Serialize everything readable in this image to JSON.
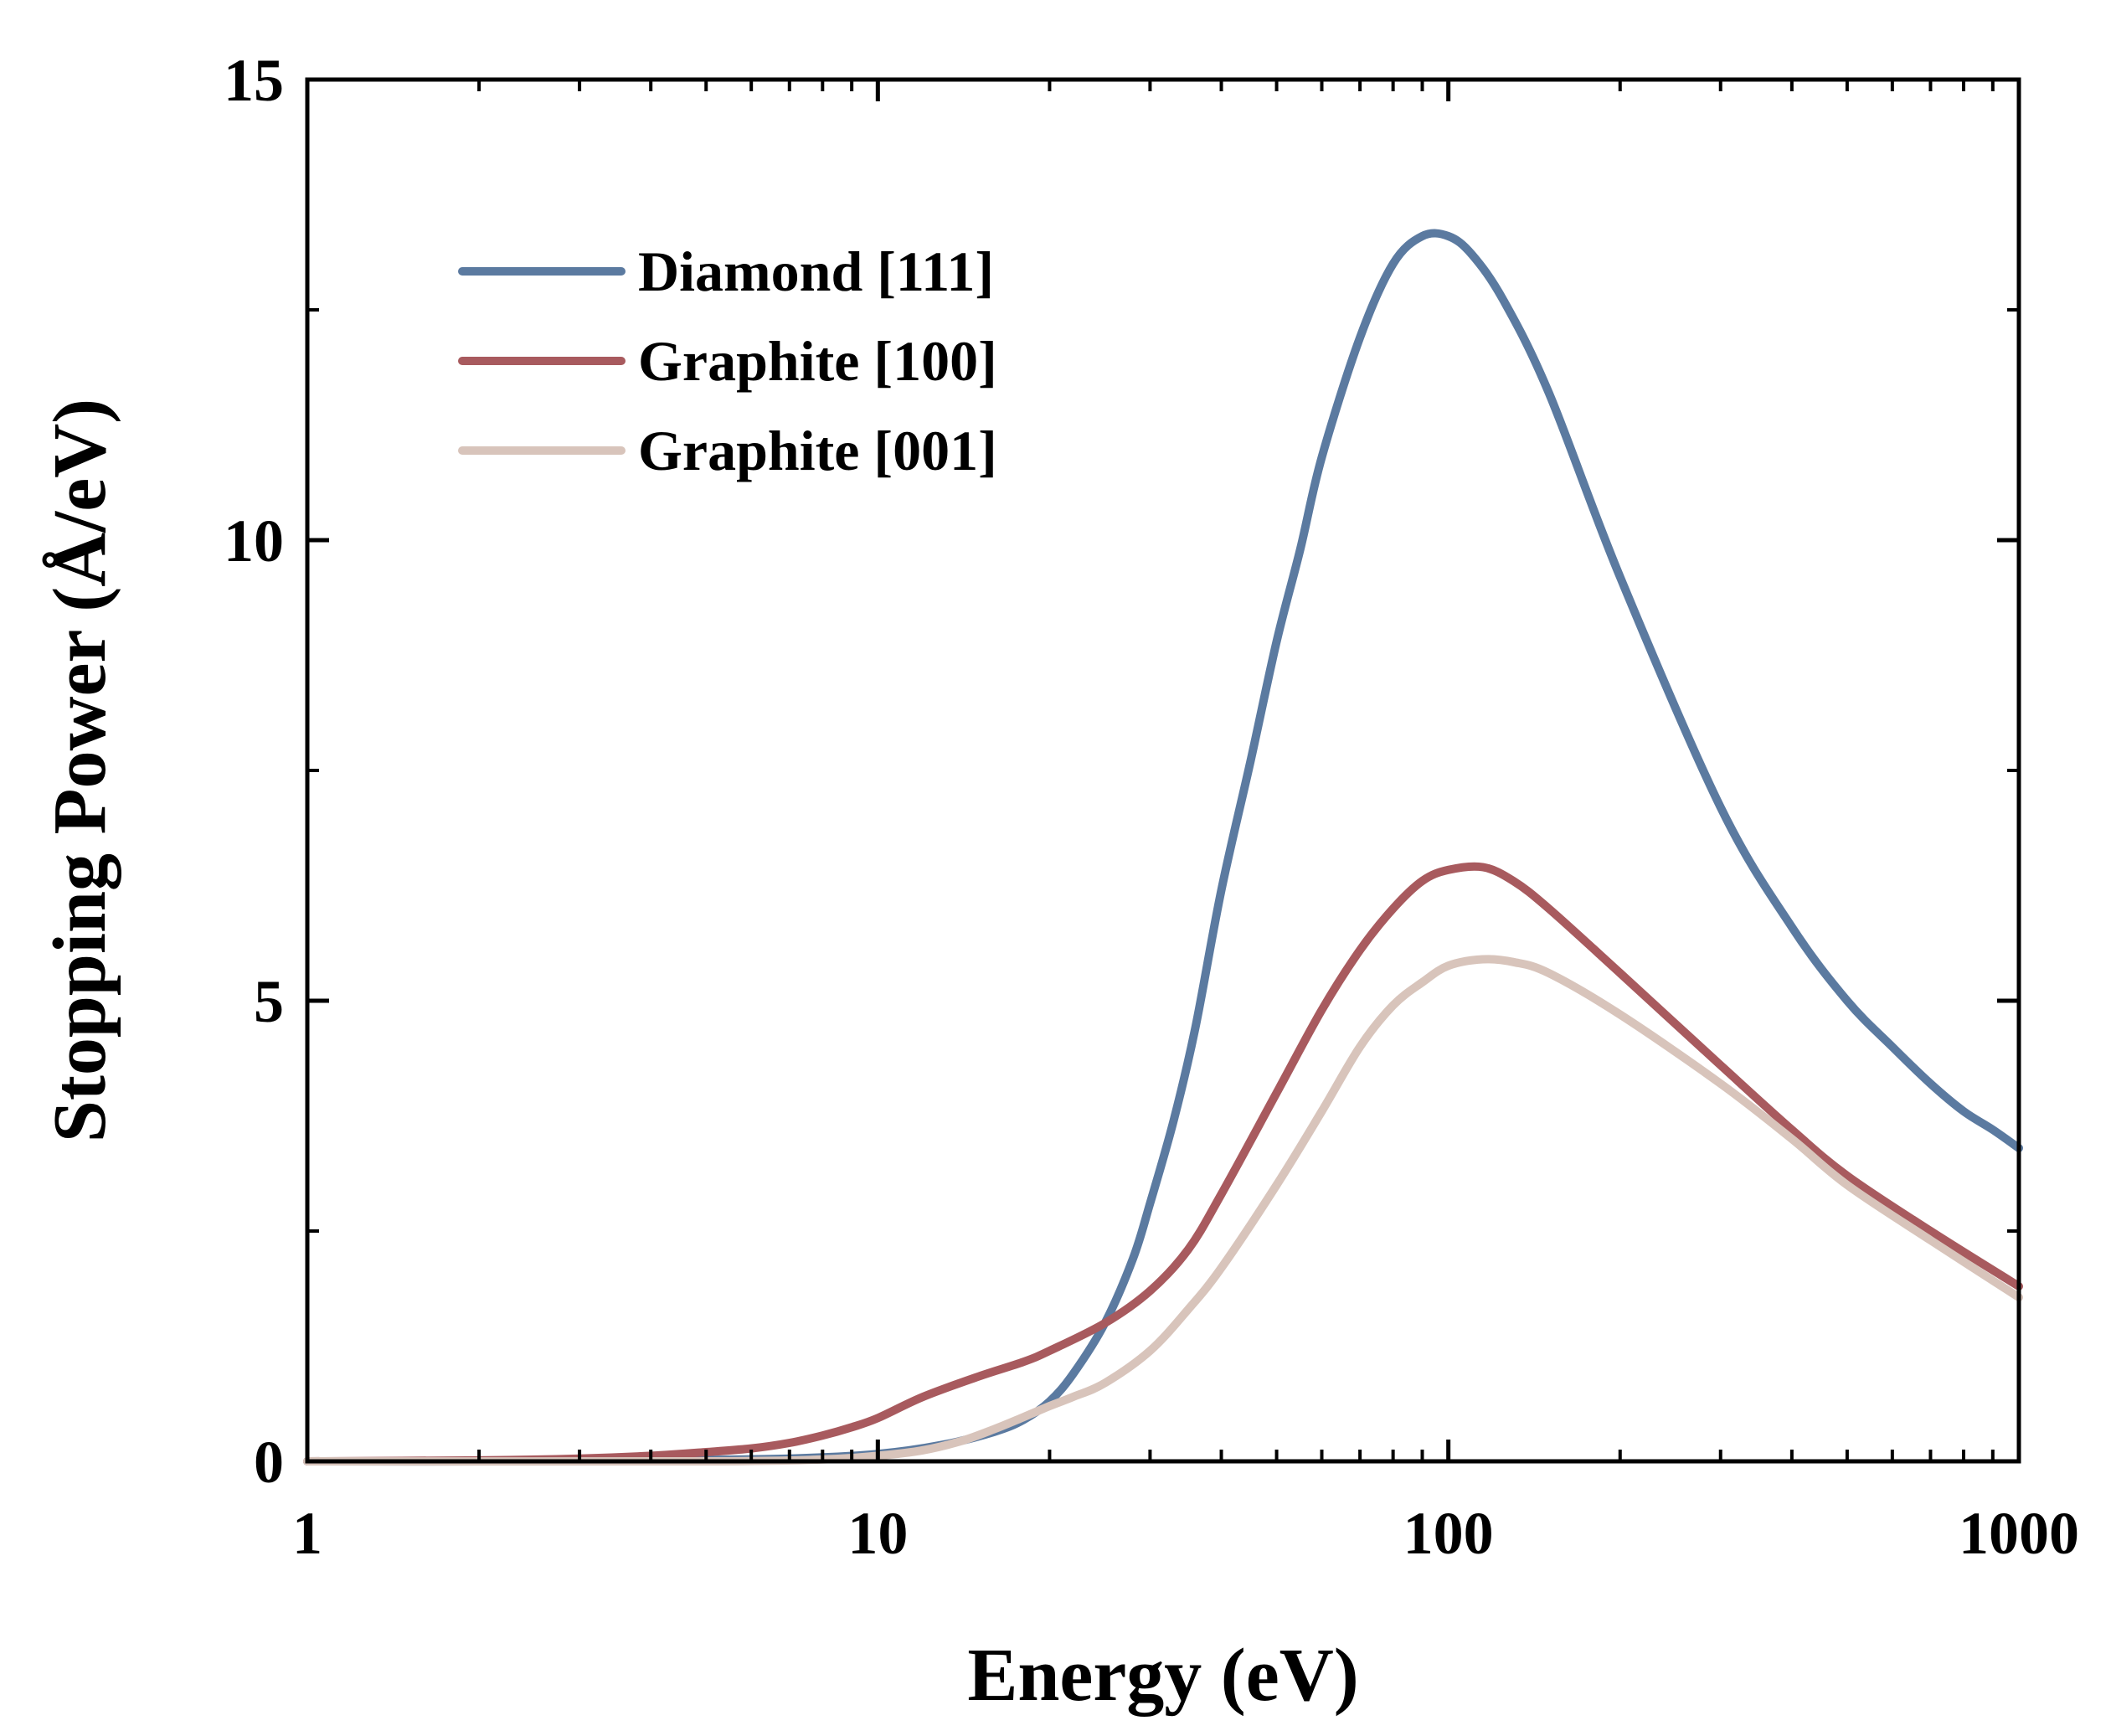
{
  "chart_data": {
    "type": "line",
    "title": "",
    "xlabel": "Energy (eV)",
    "ylabel": "Stopping Power (Å/eV)",
    "xscale": "log",
    "xlim": [
      1,
      1000
    ],
    "ylim": [
      0,
      15
    ],
    "x_ticks": [
      1,
      10,
      100,
      1000
    ],
    "x_tick_labels": [
      "1",
      "10",
      "100",
      "1000"
    ],
    "y_ticks": [
      0,
      5,
      10,
      15
    ],
    "y_tick_labels": [
      "0",
      "5",
      "10",
      "15"
    ],
    "legend_position": "top-left",
    "series": [
      {
        "name": "Diamond [111]",
        "color": "#5b7aa0",
        "x": [
          1,
          2,
          4,
          7,
          10,
          13,
          16,
          18,
          20,
          22,
          25,
          28,
          30,
          33,
          36,
          40,
          45,
          50,
          55,
          60,
          70,
          80,
          90,
          100,
          110,
          125,
          150,
          200,
          300,
          400,
          500,
          600,
          700,
          800,
          900,
          1000
        ],
        "y": [
          0,
          0,
          0.01,
          0.03,
          0.08,
          0.18,
          0.32,
          0.45,
          0.65,
          0.95,
          1.5,
          2.2,
          2.8,
          3.7,
          4.7,
          6.2,
          7.6,
          8.9,
          9.9,
          10.9,
          12.2,
          13.0,
          13.3,
          13.3,
          13.1,
          12.6,
          11.6,
          9.6,
          7.1,
          5.8,
          5.0,
          4.5,
          4.1,
          3.8,
          3.6,
          3.4
        ]
      },
      {
        "name": "Graphite [100]",
        "color": "#a85a5e",
        "x": [
          1,
          2,
          3,
          4,
          5,
          6,
          7,
          8,
          9,
          10,
          12,
          15,
          18,
          20,
          25,
          30,
          35,
          40,
          50,
          60,
          70,
          80,
          90,
          100,
          115,
          130,
          150,
          200,
          300,
          400,
          500,
          700,
          1000
        ],
        "y": [
          0,
          0.01,
          0.03,
          0.06,
          0.1,
          0.14,
          0.2,
          0.28,
          0.37,
          0.47,
          0.7,
          0.92,
          1.08,
          1.2,
          1.5,
          1.85,
          2.3,
          2.9,
          4.0,
          4.9,
          5.55,
          6.0,
          6.3,
          6.42,
          6.45,
          6.3,
          6.0,
          5.3,
          4.3,
          3.6,
          3.1,
          2.5,
          1.9
        ]
      },
      {
        "name": "Graphite [001]",
        "color": "#d8c4bb",
        "x": [
          1,
          5,
          8,
          10,
          12,
          14,
          16,
          18,
          20,
          22,
          25,
          30,
          35,
          40,
          50,
          60,
          70,
          80,
          90,
          100,
          115,
          130,
          150,
          200,
          300,
          400,
          500,
          700,
          1000
        ],
        "y": [
          0,
          0,
          0.02,
          0.06,
          0.12,
          0.22,
          0.35,
          0.48,
          0.6,
          0.7,
          0.85,
          1.2,
          1.65,
          2.1,
          3.0,
          3.8,
          4.5,
          4.95,
          5.2,
          5.38,
          5.45,
          5.42,
          5.3,
          4.85,
          4.1,
          3.5,
          3.0,
          2.4,
          1.78
        ]
      }
    ]
  }
}
